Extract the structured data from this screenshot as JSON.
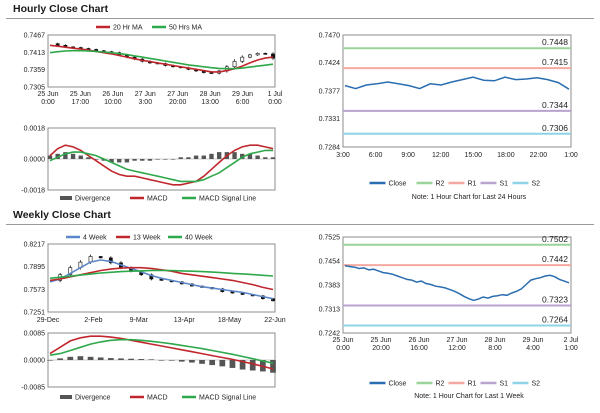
{
  "sections": {
    "hourly_title": "Hourly Close Chart",
    "weekly_title": "Weekly Close Chart"
  },
  "colors": {
    "ma_a": "#c0272d",
    "ma_b": "#2ea84a",
    "macd_blue": "#5b86c8",
    "close": "#2a6db0",
    "r2": "#9bd39b",
    "r1": "#f4a9a0",
    "s1": "#b9a3cf",
    "s2": "#8fd3e6",
    "bars": "#555555"
  },
  "chart_data": [
    {
      "type": "candlestick",
      "panel": "hourly-price",
      "legend": [
        "20 Hr MA",
        "50 Hrs MA"
      ],
      "y_ticks": [
        "0.7467",
        "0.7413",
        "0.7359",
        "0.7305"
      ],
      "x_ticks": [
        [
          "25 Jun",
          "0:00"
        ],
        [
          "25 Jun",
          "17:00"
        ],
        [
          "26 Jun",
          "10:00"
        ],
        [
          "27 Jun",
          "3:00"
        ],
        [
          "27 Jun",
          "20:00"
        ],
        [
          "28 Jun",
          "13:00"
        ],
        [
          "29 Jun",
          "6:00"
        ],
        [
          "1 Jul",
          "0:00"
        ]
      ],
      "ylim": [
        0.7305,
        0.7467
      ],
      "price": [
        0.744,
        0.7435,
        0.743,
        0.7428,
        0.7425,
        0.7422,
        0.7418,
        0.7415,
        0.7412,
        0.7405,
        0.7398,
        0.7392,
        0.7385,
        0.738,
        0.7378,
        0.7372,
        0.7368,
        0.7365,
        0.736,
        0.7355,
        0.735,
        0.7348,
        0.7355,
        0.7368,
        0.7385,
        0.7398,
        0.7405,
        0.741,
        0.7408,
        0.7395
      ],
      "series": [
        {
          "name": "20 Hr MA",
          "values": [
            0.7435,
            0.7432,
            0.7429,
            0.7426,
            0.7423,
            0.742,
            0.7416,
            0.7412,
            0.7408,
            0.7403,
            0.7398,
            0.7393,
            0.7388,
            0.7384,
            0.738,
            0.7376,
            0.7372,
            0.7368,
            0.7364,
            0.736,
            0.7356,
            0.7352,
            0.7352,
            0.7356,
            0.7362,
            0.737,
            0.738,
            0.7389,
            0.7395,
            0.7398
          ]
        },
        {
          "name": "50 Hrs MA",
          "values": [
            0.7412,
            0.7415,
            0.7417,
            0.7418,
            0.7418,
            0.7417,
            0.7416,
            0.7414,
            0.7412,
            0.7409,
            0.7406,
            0.7402,
            0.7398,
            0.7394,
            0.739,
            0.7386,
            0.7382,
            0.7378,
            0.7374,
            0.7371,
            0.7368,
            0.7365,
            0.7363,
            0.7362,
            0.7362,
            0.7364,
            0.7367,
            0.737,
            0.7373,
            0.7376
          ]
        }
      ]
    },
    {
      "type": "bar",
      "panel": "hourly-macd",
      "legend": [
        "Divergence",
        "MACD",
        "MACD Signal Line"
      ],
      "y_ticks": [
        "0.0018",
        "0.0000",
        "-0.0018"
      ],
      "ylim": [
        -0.0018,
        0.0018
      ],
      "series": [
        {
          "name": "Divergence",
          "values": [
            0.0002,
            0.0003,
            0.0004,
            0.0003,
            0.0002,
            0.0001,
            0.0,
            -0.0001,
            -0.0002,
            -0.0002,
            -0.0002,
            -0.0001,
            -0.0001,
            -0.0001,
            0.0,
            0.0,
            0.0,
            0.0001,
            0.0001,
            0.0002,
            0.0002,
            0.0003,
            0.0004,
            0.0004,
            0.0004,
            0.0003,
            0.0003,
            0.0002,
            0.0001,
            0.0001
          ]
        },
        {
          "name": "MACD",
          "values": [
            0.0002,
            0.0006,
            0.0008,
            0.0007,
            0.0005,
            0.0002,
            -0.0001,
            -0.0004,
            -0.0007,
            -0.0009,
            -0.001,
            -0.001,
            -0.0011,
            -0.0012,
            -0.0013,
            -0.0014,
            -0.0015,
            -0.0015,
            -0.0014,
            -0.0013,
            -0.001,
            -0.0006,
            -0.0002,
            0.0002,
            0.0005,
            0.0007,
            0.0008,
            0.0008,
            0.0007,
            0.0006
          ]
        },
        {
          "name": "MACD Signal Line",
          "values": [
            -0.0001,
            0.0001,
            0.0003,
            0.0004,
            0.0004,
            0.0003,
            0.0002,
            0.0,
            -0.0002,
            -0.0004,
            -0.0006,
            -0.0007,
            -0.0008,
            -0.0009,
            -0.001,
            -0.0011,
            -0.0012,
            -0.0013,
            -0.0013,
            -0.0013,
            -0.0012,
            -0.001,
            -0.0008,
            -0.0005,
            -0.0002,
            0.0001,
            0.0003,
            0.0004,
            0.0005,
            0.0005
          ]
        }
      ]
    },
    {
      "type": "line",
      "panel": "hourly-levels",
      "y_ticks": [
        "0.7470",
        "0.7424",
        "0.7377",
        "0.7331",
        "0.7284"
      ],
      "x_ticks": [
        "3:00",
        "6:00",
        "9:00",
        "12:00",
        "15:00",
        "18:00",
        "22:00",
        "1:00"
      ],
      "ylim": [
        0.7284,
        0.747
      ],
      "levels": [
        {
          "name": "R2",
          "value": 0.7448,
          "label": "0.7448"
        },
        {
          "name": "R1",
          "value": 0.7415,
          "label": "0.7415"
        },
        {
          "name": "S1",
          "value": 0.7344,
          "label": "0.7344"
        },
        {
          "name": "S2",
          "value": 0.7306,
          "label": "0.7306"
        }
      ],
      "close": [
        0.7386,
        0.7381,
        0.7387,
        0.7389,
        0.7392,
        0.7389,
        0.7386,
        0.7381,
        0.7389,
        0.7387,
        0.7392,
        0.7396,
        0.74,
        0.7395,
        0.7394,
        0.74,
        0.7396,
        0.7397,
        0.7399,
        0.7396,
        0.7391,
        0.738
      ],
      "legend": [
        "Close",
        "R2",
        "R1",
        "S1",
        "S2"
      ],
      "note": "Note: 1 Hour Chart for Last 24 Hours"
    },
    {
      "type": "candlestick",
      "panel": "weekly-price",
      "legend": [
        "4 Week",
        "13 Week",
        "40 Week"
      ],
      "y_ticks": [
        "0.8217",
        "0.7895",
        "0.7573",
        "0.7251"
      ],
      "x_ticks": [
        "29-Dec",
        "2-Feb",
        "9-Mar",
        "13-Apr",
        "18-May",
        "22-Jun"
      ],
      "ylim": [
        0.7251,
        0.8217
      ],
      "price": [
        0.77,
        0.778,
        0.788,
        0.796,
        0.804,
        0.802,
        0.795,
        0.788,
        0.783,
        0.778,
        0.772,
        0.77,
        0.768,
        0.765,
        0.762,
        0.76,
        0.758,
        0.754,
        0.752,
        0.75,
        0.748,
        0.744,
        0.741
      ],
      "series": [
        {
          "name": "4 Week",
          "values": [
            0.768,
            0.772,
            0.78,
            0.788,
            0.796,
            0.799,
            0.797,
            0.792,
            0.787,
            0.782,
            0.777,
            0.773,
            0.77,
            0.767,
            0.764,
            0.761,
            0.759,
            0.757,
            0.755,
            0.753,
            0.75,
            0.747,
            0.744
          ]
        },
        {
          "name": "13 Week",
          "values": [
            0.77,
            0.772,
            0.775,
            0.778,
            0.781,
            0.784,
            0.786,
            0.7875,
            0.788,
            0.788,
            0.787,
            0.785,
            0.783,
            0.78,
            0.778,
            0.776,
            0.774,
            0.772,
            0.77,
            0.767,
            0.764,
            0.76,
            0.757
          ]
        },
        {
          "name": "40 Week",
          "values": [
            0.773,
            0.7745,
            0.776,
            0.7775,
            0.779,
            0.7805,
            0.7815,
            0.7825,
            0.783,
            0.7835,
            0.784,
            0.784,
            0.784,
            0.7835,
            0.783,
            0.7825,
            0.7818,
            0.781,
            0.78,
            0.7792,
            0.7782,
            0.7772,
            0.7762
          ]
        }
      ]
    },
    {
      "type": "bar",
      "panel": "weekly-macd",
      "legend": [
        "Divergence",
        "MACD",
        "MACD Signal Line"
      ],
      "y_ticks": [
        "0.0085",
        "0.0000",
        "-0.0085"
      ],
      "ylim": [
        -0.0085,
        0.0085
      ],
      "series": [
        {
          "name": "Divergence",
          "values": [
            0.0,
            0.0005,
            0.001,
            0.0012,
            0.001,
            0.0008,
            0.0006,
            0.0005,
            0.0004,
            0.0003,
            0.0002,
            0.0,
            -0.0002,
            -0.0005,
            -0.0008,
            -0.0012,
            -0.0016,
            -0.002,
            -0.0025,
            -0.003,
            -0.0033,
            -0.0036,
            -0.004
          ]
        },
        {
          "name": "MACD",
          "values": [
            0.002,
            0.004,
            0.006,
            0.007,
            0.0075,
            0.0075,
            0.0072,
            0.0068,
            0.0062,
            0.0056,
            0.005,
            0.0044,
            0.0038,
            0.0032,
            0.0026,
            0.002,
            0.0014,
            0.0008,
            0.0002,
            -0.0005,
            -0.0012,
            -0.002,
            -0.0028
          ]
        },
        {
          "name": "MACD Signal Line",
          "values": [
            0.0015,
            0.002,
            0.003,
            0.004,
            0.005,
            0.0057,
            0.0062,
            0.0064,
            0.0064,
            0.0062,
            0.0059,
            0.0055,
            0.0051,
            0.0046,
            0.0041,
            0.0036,
            0.003,
            0.0024,
            0.0018,
            0.0011,
            0.0004,
            -0.0003,
            -0.001
          ]
        }
      ]
    },
    {
      "type": "line",
      "panel": "weekly-levels",
      "y_ticks": [
        "0.7525",
        "0.7454",
        "0.7383",
        "0.7313",
        "0.7242"
      ],
      "x_ticks": [
        [
          "25 Jun",
          "0:00"
        ],
        [
          "25 Jun",
          "20:00"
        ],
        [
          "26 Jun",
          "16:00"
        ],
        [
          "27 Jun",
          "12:00"
        ],
        [
          "28 Jun",
          "8:00"
        ],
        [
          "29 Jun",
          "4:00"
        ],
        [
          "2 Jul",
          "1:00"
        ]
      ],
      "ylim": [
        0.7242,
        0.7525
      ],
      "levels": [
        {
          "name": "R2",
          "value": 0.7502,
          "label": "0.7502"
        },
        {
          "name": "R1",
          "value": 0.7442,
          "label": "0.7442"
        },
        {
          "name": "S1",
          "value": 0.7323,
          "label": "0.7323"
        },
        {
          "name": "S2",
          "value": 0.7264,
          "label": "0.7264"
        }
      ],
      "close": [
        0.744,
        0.7438,
        0.7436,
        0.7432,
        0.7434,
        0.7428,
        0.743,
        0.7425,
        0.742,
        0.7418,
        0.7415,
        0.741,
        0.7405,
        0.74,
        0.7398,
        0.7392,
        0.7395,
        0.7388,
        0.7385,
        0.738,
        0.7378,
        0.7375,
        0.737,
        0.7365,
        0.7358,
        0.735,
        0.7343,
        0.7338,
        0.7342,
        0.7348,
        0.7345,
        0.735,
        0.7352,
        0.7355,
        0.7353,
        0.736,
        0.7365,
        0.7372,
        0.7385,
        0.7398,
        0.7402,
        0.7405,
        0.741,
        0.7412,
        0.7408,
        0.74,
        0.7395,
        0.739
      ],
      "legend": [
        "Close",
        "R2",
        "R1",
        "S1",
        "S2"
      ],
      "note": "Note: 1 Hour Chart for Last 1 Week"
    }
  ]
}
